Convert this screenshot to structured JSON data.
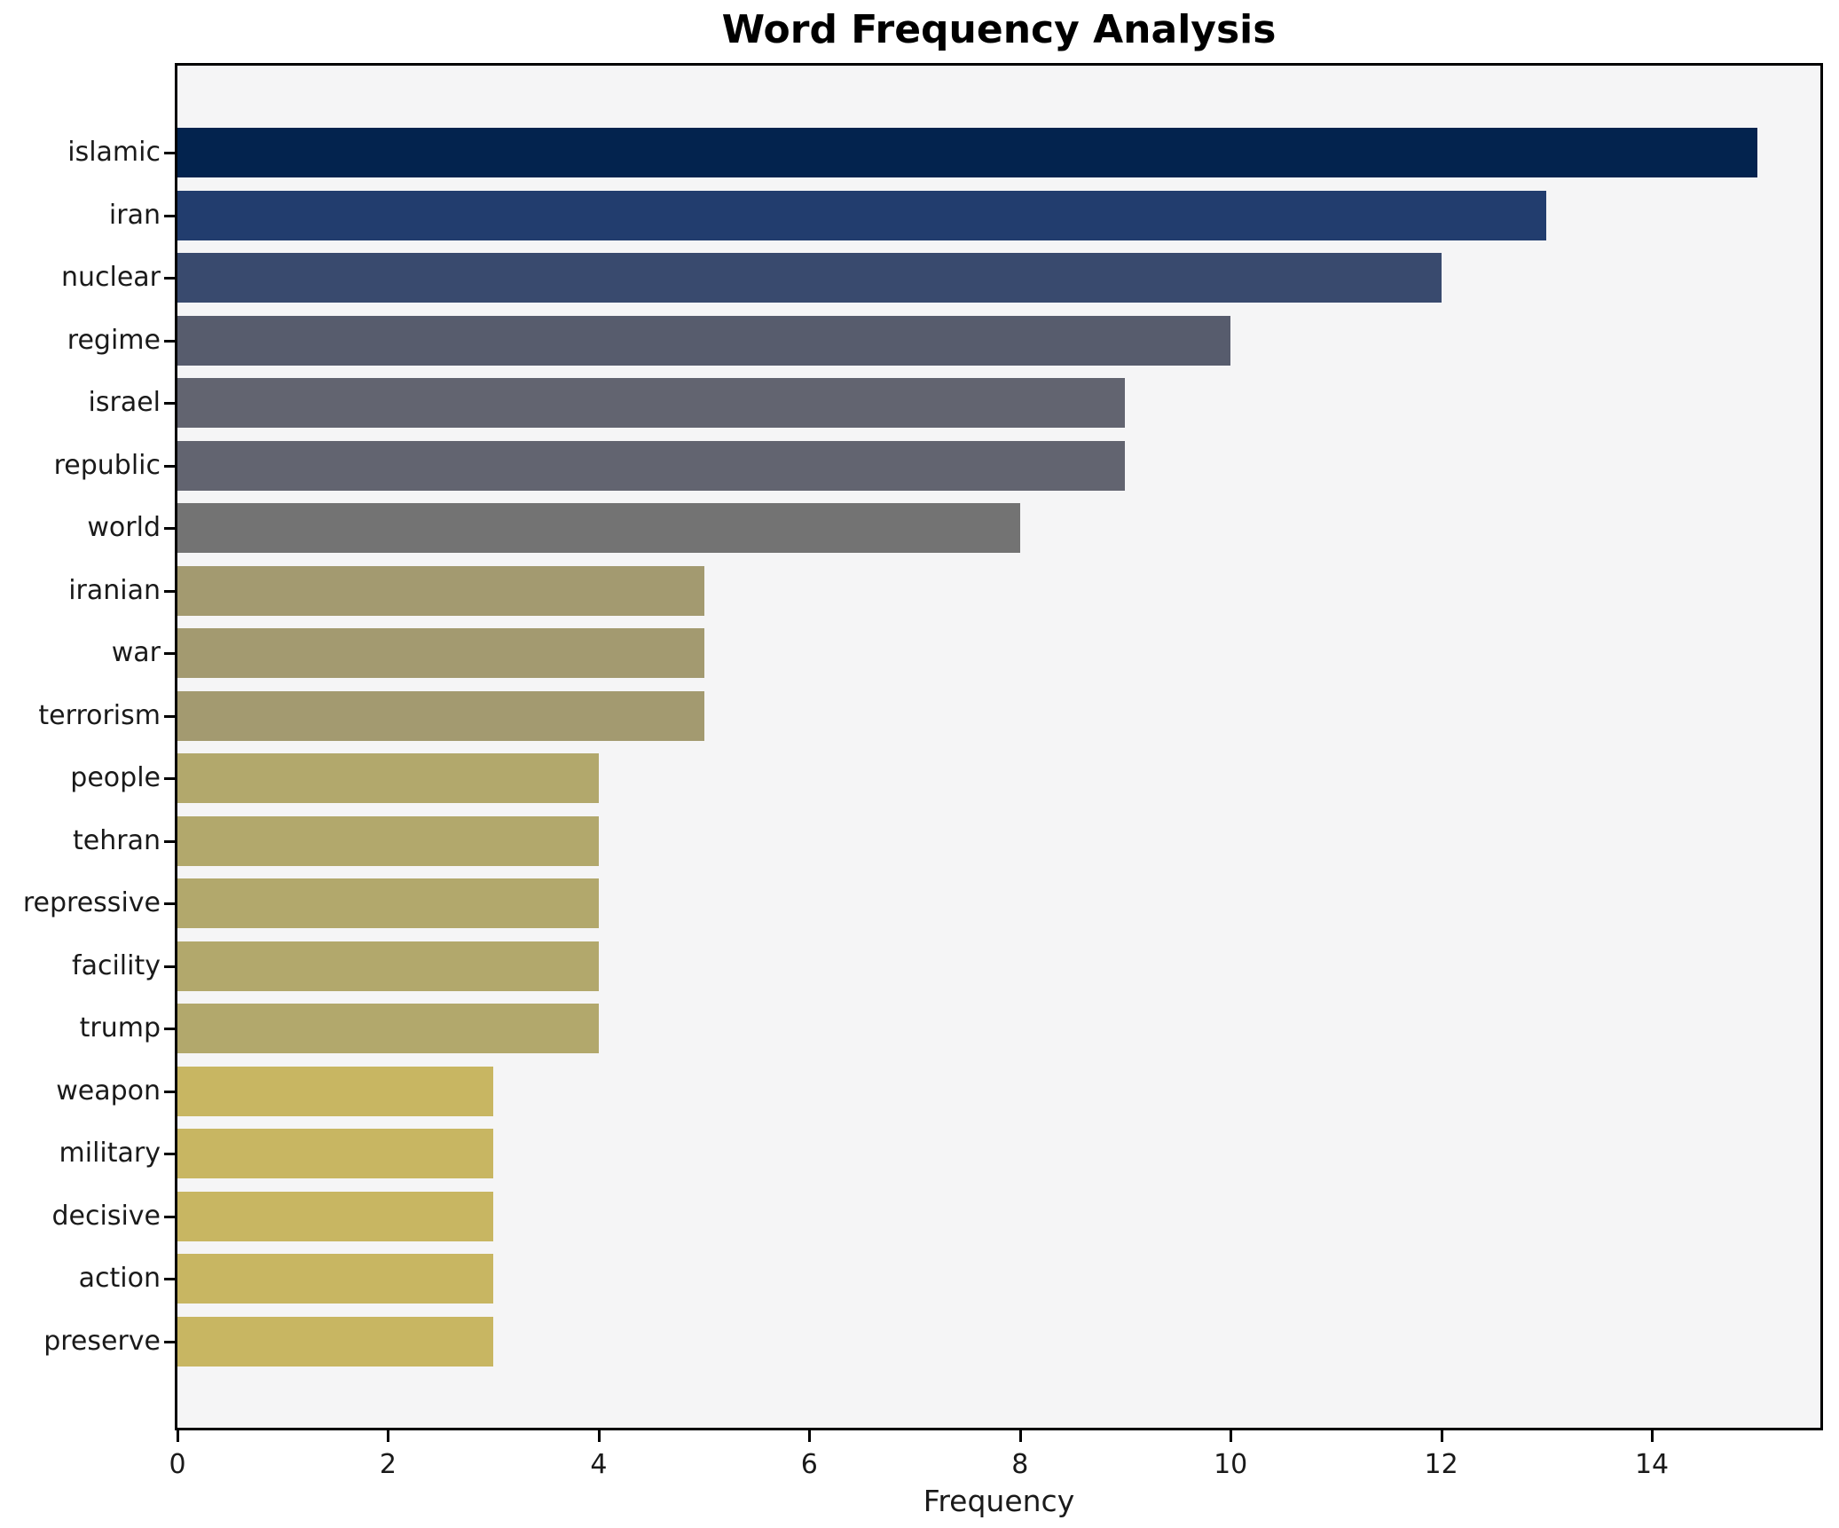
{
  "chart_data": {
    "type": "bar",
    "orientation": "horizontal",
    "title": "Word Frequency Analysis",
    "xlabel": "Frequency",
    "ylabel": "",
    "categories": [
      "islamic",
      "iran",
      "nuclear",
      "regime",
      "israel",
      "republic",
      "world",
      "iranian",
      "war",
      "terrorism",
      "people",
      "tehran",
      "repressive",
      "facility",
      "trump",
      "weapon",
      "military",
      "decisive",
      "action",
      "preserve"
    ],
    "values": [
      15,
      13,
      12,
      10,
      9,
      9,
      8,
      5,
      5,
      5,
      4,
      4,
      4,
      4,
      4,
      3,
      3,
      3,
      3,
      3
    ],
    "bar_colors": [
      "#03234e",
      "#223d6e",
      "#394a6e",
      "#575c6d",
      "#626470",
      "#626470",
      "#737373",
      "#a39a70",
      "#a39a70",
      "#a39a70",
      "#b2a86c",
      "#b2a86c",
      "#b2a86c",
      "#b2a86c",
      "#b2a86c",
      "#c8b662",
      "#c8b662",
      "#c8b662",
      "#c8b662",
      "#c8b662"
    ],
    "xlim": [
      0,
      15.6
    ],
    "xticks": [
      0,
      2,
      4,
      6,
      8,
      10,
      12,
      14
    ],
    "grid": false,
    "legend": "none",
    "plot_bg": "#f5f5f6",
    "figure_bg": "#ffffff",
    "spine_color": "#000000"
  }
}
